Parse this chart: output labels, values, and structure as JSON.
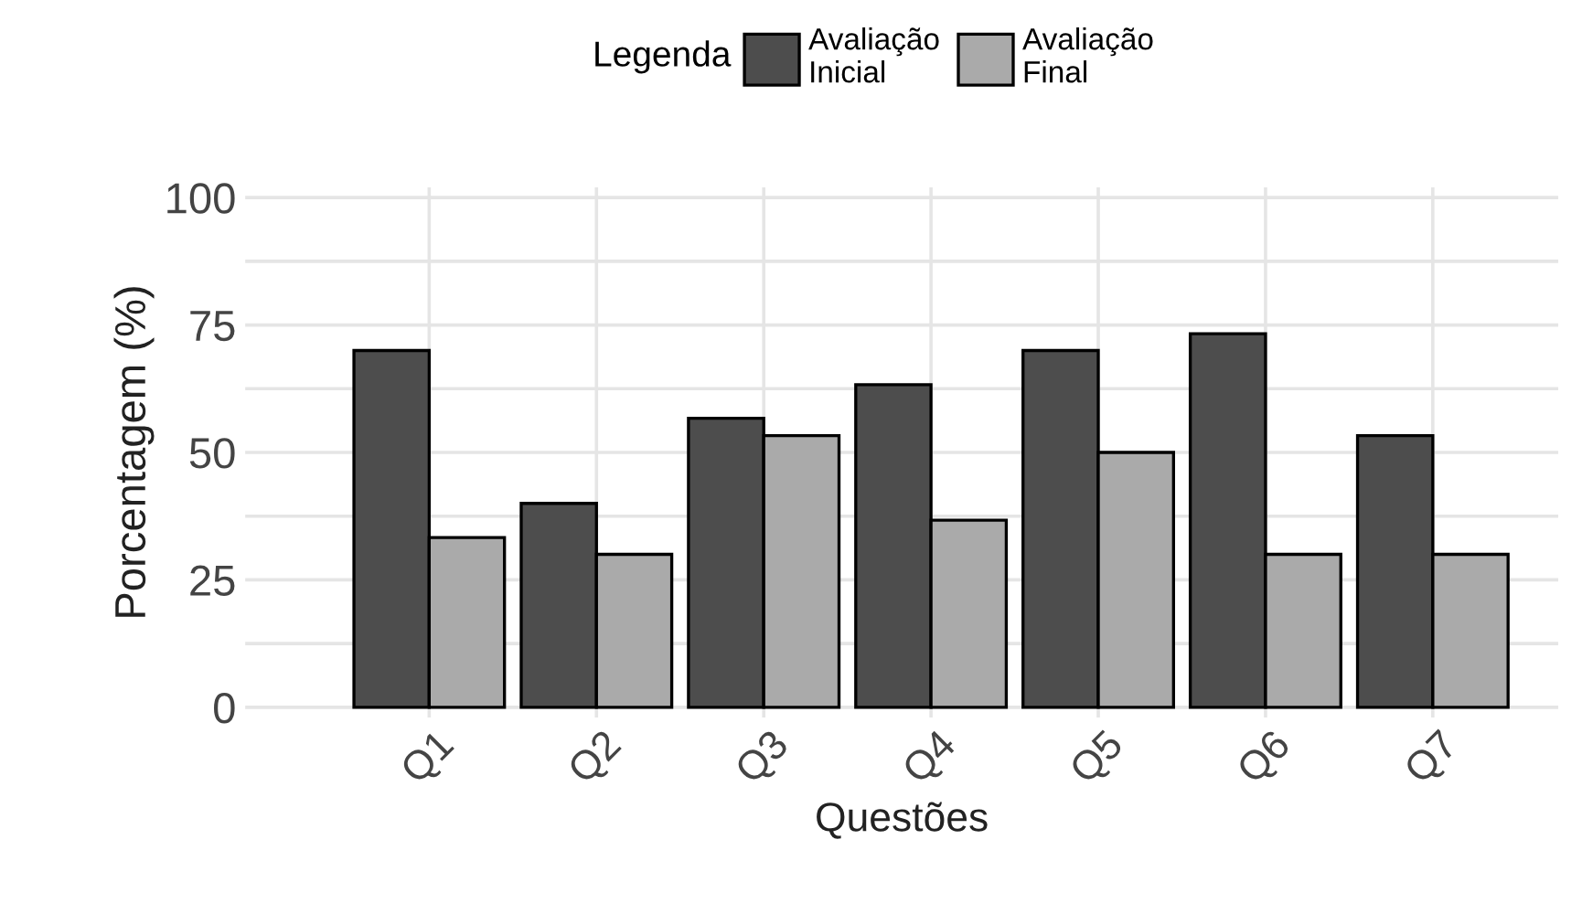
{
  "chart_data": {
    "type": "bar",
    "xlabel": "Questões",
    "ylabel": "Porcentagem (%)",
    "legend_title": "Legenda",
    "legend": "top",
    "categories": [
      "Q1",
      "Q2",
      "Q3",
      "Q4",
      "Q5",
      "Q6",
      "Q7"
    ],
    "series": [
      {
        "name": "Avaliação\nInicial",
        "color": "#4d4d4d",
        "values": [
          70,
          40,
          56.7,
          63.3,
          70,
          73.3,
          53.3
        ]
      },
      {
        "name": "Avaliação\nFinal",
        "color": "#aaaaaa",
        "values": [
          33.3,
          30,
          53.3,
          36.7,
          50,
          30,
          30
        ]
      }
    ],
    "ylim": [
      -2,
      102
    ],
    "yticks": [
      0,
      {
        "value": 12.5,
        "label": null
      },
      25,
      {
        "value": 37.5,
        "label": null
      },
      50,
      {
        "value": 62.5,
        "label": null
      },
      75,
      {
        "value": 87.5,
        "label": null
      },
      100
    ],
    "grid": true
  }
}
